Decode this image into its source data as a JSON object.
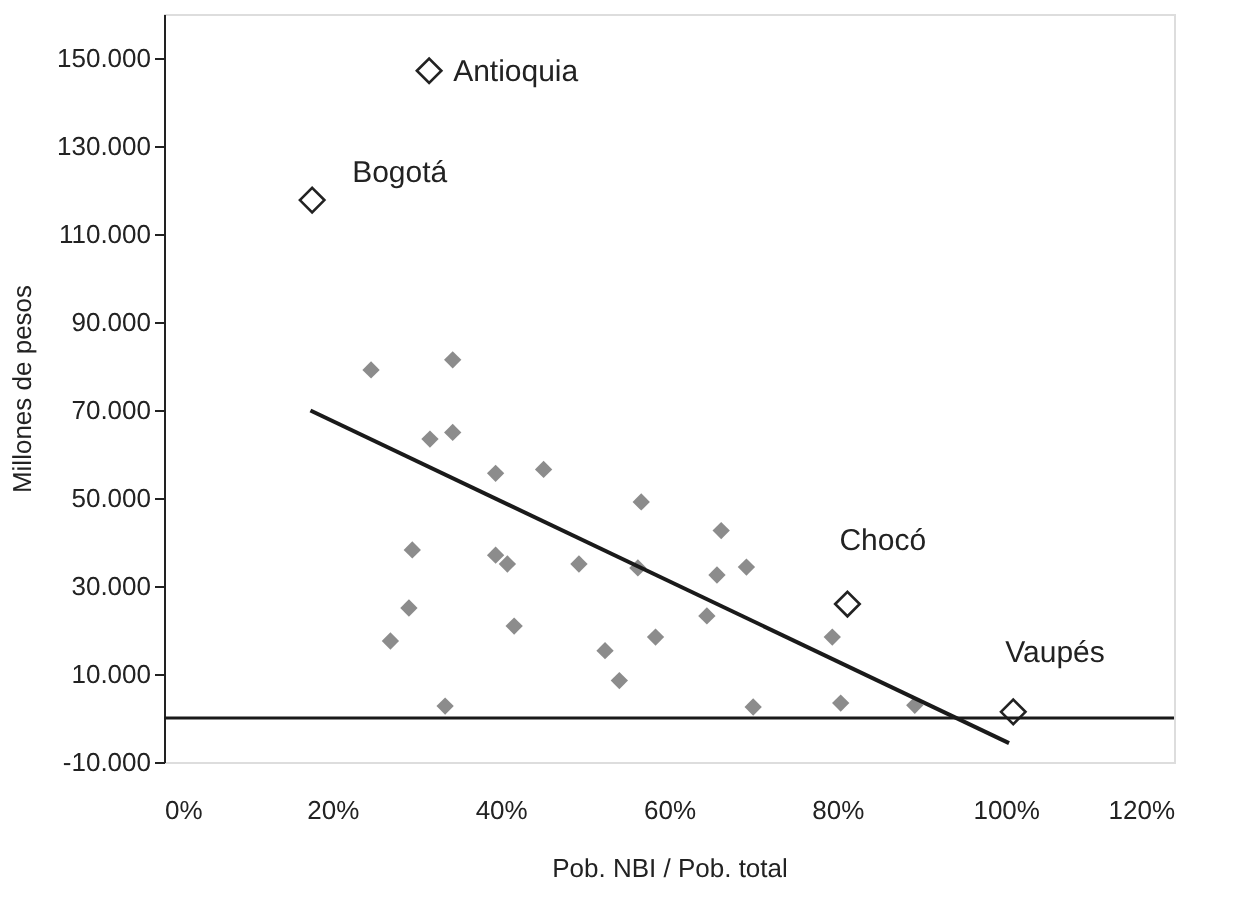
{
  "chart_data": {
    "type": "scatter",
    "xlabel": "Pob. NBI / Pob. total",
    "ylabel": "Millones de pesos",
    "xlim": [
      0,
      120
    ],
    "ylim": [
      -10000,
      160000
    ],
    "xticks": [
      {
        "value": 0,
        "label": "0%"
      },
      {
        "value": 20,
        "label": "20%"
      },
      {
        "value": 40,
        "label": "40%"
      },
      {
        "value": 60,
        "label": "60%"
      },
      {
        "value": 80,
        "label": "80%"
      },
      {
        "value": 100,
        "label": "100%"
      },
      {
        "value": 120,
        "label": "120%"
      }
    ],
    "yticks": [
      {
        "value": -10000,
        "label": "-10.000"
      },
      {
        "value": 10000,
        "label": "10.000"
      },
      {
        "value": 30000,
        "label": "30.000"
      },
      {
        "value": 50000,
        "label": "50.000"
      },
      {
        "value": 70000,
        "label": "70.000"
      },
      {
        "value": 90000,
        "label": "90.000"
      },
      {
        "value": 110000,
        "label": "110.000"
      },
      {
        "value": 130000,
        "label": "130.000"
      },
      {
        "value": 150000,
        "label": "150.000"
      }
    ],
    "grid": false,
    "marker": "diamond",
    "series": [
      {
        "color": "#8c8c8c",
        "x": [
          24.6,
          34.3,
          31.6,
          34.3,
          39.4,
          45.1,
          56.7,
          29.5,
          39.4,
          40.8,
          49.3,
          56.3,
          29.1,
          41.6,
          26.9,
          52.4,
          58.4,
          54.1,
          33.4,
          66.2,
          69.2,
          65.7,
          64.5,
          79.4,
          70.0,
          80.4,
          89.2
        ],
        "values": [
          79100,
          81400,
          63400,
          64900,
          55600,
          56500,
          49100,
          38200,
          37000,
          35000,
          35000,
          34100,
          25000,
          20900,
          17500,
          15300,
          18400,
          8500,
          2700,
          42600,
          34300,
          32500,
          23200,
          18400,
          2500,
          3400,
          2900
        ]
      },
      {
        "color": "#ffffff",
        "x": [
          31.5,
          17.6,
          81.2,
          100.9
        ],
        "values": [
          147100,
          117700,
          25900,
          1400
        ]
      },
      {
        "type": "line",
        "marker": "none",
        "color": "#1a1a1a",
        "x": [
          17.4,
          100.4
        ],
        "values": [
          69900,
          -5700
        ]
      }
    ],
    "ref_lines": [
      {
        "axis": "y",
        "value": 0,
        "color": "#1a1a1a"
      }
    ],
    "annotations": [
      {
        "text": "Antioquia",
        "x": 31.5,
        "y": 147100
      },
      {
        "text": "Bogotá",
        "x": 17.6,
        "y": 117700
      },
      {
        "text": "Chocó",
        "x": 81.2,
        "y": 25900
      },
      {
        "text": "Vaupés",
        "x": 100.9,
        "y": 1400
      }
    ]
  }
}
